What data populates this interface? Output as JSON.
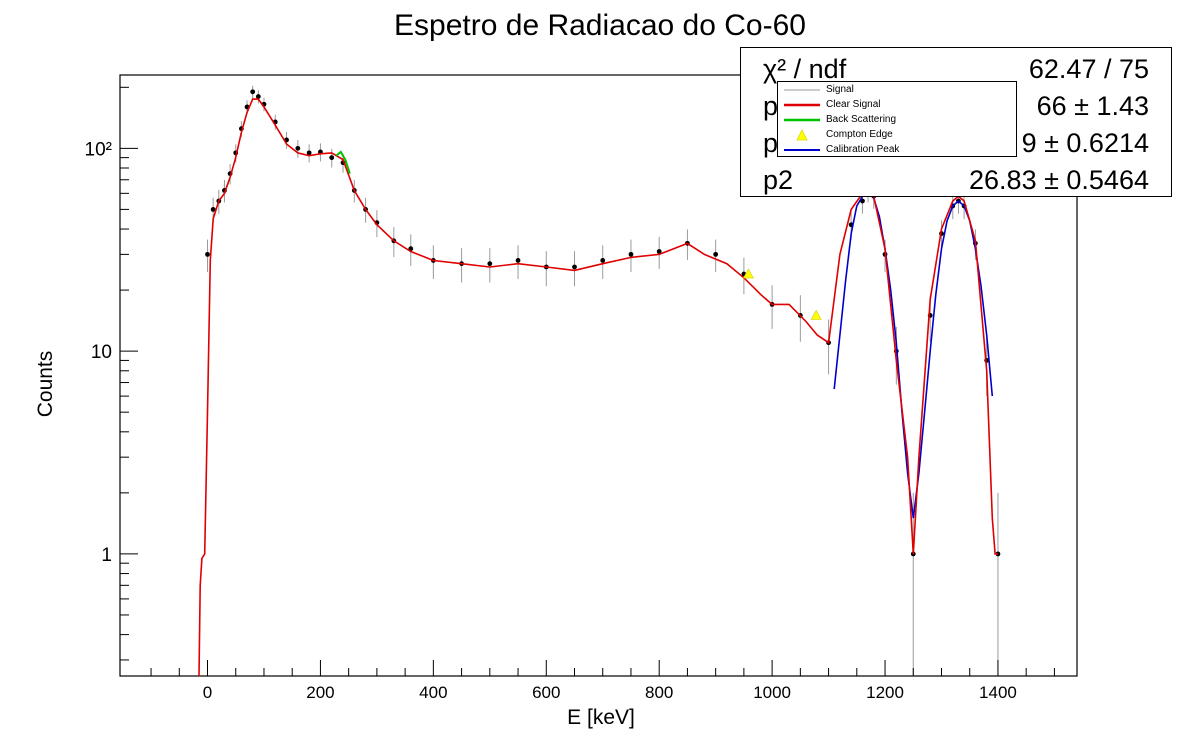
{
  "chart_data": {
    "type": "scatter",
    "title": "Espetro de Radiacao do Co-60",
    "xlabel": "E [keV]",
    "ylabel": "Counts",
    "xlim": [
      -155,
      1540
    ],
    "ylim": [
      0.25,
      230
    ],
    "y_scale": "log",
    "x_ticks": [
      "0",
      "200",
      "400",
      "600",
      "800",
      "1000",
      "1200",
      "1400"
    ],
    "y_ticks": [
      "1",
      "10",
      "10²"
    ],
    "grid": false,
    "legend_position": "top-right",
    "legend": [
      "Signal",
      "Clear Signal",
      "Back Scattering",
      "Compton Edge",
      "Calibration Peak"
    ],
    "series": [
      {
        "name": "Clear Signal",
        "color": "#e00000",
        "x": [
          -15,
          -13,
          -10,
          -5,
          0,
          5,
          10,
          20,
          30,
          40,
          50,
          60,
          70,
          80,
          90,
          100,
          120,
          140,
          160,
          180,
          200,
          220,
          240,
          260,
          280,
          300,
          330,
          360,
          400,
          450,
          500,
          550,
          600,
          650,
          700,
          750,
          800,
          850,
          880,
          920,
          950,
          980,
          1000,
          1030,
          1060,
          1080,
          1100,
          1120,
          1140,
          1160,
          1170,
          1180,
          1200,
          1220,
          1240,
          1250,
          1260,
          1280,
          1300,
          1320,
          1330,
          1340,
          1360,
          1380,
          1390,
          1395,
          1400
        ],
        "y": [
          0.25,
          0.7,
          0.95,
          1.0,
          5,
          28,
          45,
          55,
          60,
          72,
          90,
          120,
          150,
          175,
          175,
          160,
          130,
          105,
          95,
          92,
          94,
          95,
          88,
          62,
          50,
          42,
          35,
          31,
          28,
          27,
          26,
          27,
          26,
          25,
          27,
          29,
          30,
          34,
          30,
          27,
          23,
          19,
          17,
          17,
          14,
          12,
          11,
          30,
          50,
          60,
          61,
          58,
          32,
          9,
          3,
          1.0,
          3,
          18,
          40,
          55,
          58,
          55,
          35,
          8,
          1.5,
          1.0,
          1.0
        ]
      },
      {
        "name": "Back Scattering",
        "color": "#00c000",
        "x": [
          228,
          236,
          244,
          252
        ],
        "y": [
          92,
          96,
          88,
          75
        ]
      },
      {
        "name": "Calibration Peak",
        "color": "#0000cc",
        "x": [
          1110,
          1120,
          1130,
          1140,
          1150,
          1160,
          1170,
          1180,
          1190,
          1200,
          1210,
          1220,
          1230,
          1240,
          1250,
          1260,
          1270,
          1280,
          1290,
          1300,
          1310,
          1320,
          1330,
          1340,
          1350,
          1360,
          1370,
          1380,
          1390
        ],
        "y": [
          6.5,
          12,
          22,
          38,
          52,
          58,
          60,
          57,
          46,
          32,
          20,
          11,
          5,
          2.5,
          1.5,
          2.5,
          5,
          10,
          19,
          32,
          44,
          52,
          55,
          52,
          44,
          32,
          21,
          12,
          6
        ]
      },
      {
        "name": "Compton Edge",
        "color": "#ffff00",
        "x": [
          958,
          1078
        ],
        "y": [
          24,
          15
        ]
      },
      {
        "name": "Signal",
        "color": "#000000",
        "x": [
          0,
          10,
          20,
          30,
          40,
          50,
          60,
          70,
          80,
          90,
          100,
          120,
          140,
          160,
          180,
          200,
          220,
          240,
          260,
          280,
          300,
          330,
          360,
          400,
          450,
          500,
          550,
          600,
          650,
          700,
          750,
          800,
          850,
          900,
          950,
          1000,
          1050,
          1100,
          1140,
          1160,
          1170,
          1180,
          1200,
          1220,
          1250,
          1280,
          1300,
          1320,
          1330,
          1340,
          1360,
          1380,
          1400
        ],
        "y": [
          30,
          50,
          55,
          62,
          75,
          95,
          125,
          160,
          190,
          180,
          165,
          135,
          110,
          100,
          95,
          96,
          90,
          85,
          62,
          50,
          43,
          35,
          32,
          28,
          27,
          27,
          28,
          26,
          26,
          28,
          30,
          31,
          34,
          30,
          24,
          17,
          15,
          11,
          42,
          55,
          62,
          58,
          30,
          10,
          1.0,
          15,
          38,
          52,
          55,
          52,
          34,
          9,
          1.0
        ]
      }
    ]
  },
  "fit_stats": [
    {
      "key": "χ² / ndf",
      "value": "62.47 / 75"
    },
    {
      "key": "p",
      "value": "66 ±  1.43"
    },
    {
      "key": "p",
      "value": "9 ± 0.6214"
    },
    {
      "key": "p2",
      "value": "26.83 ± 0.5464"
    }
  ]
}
